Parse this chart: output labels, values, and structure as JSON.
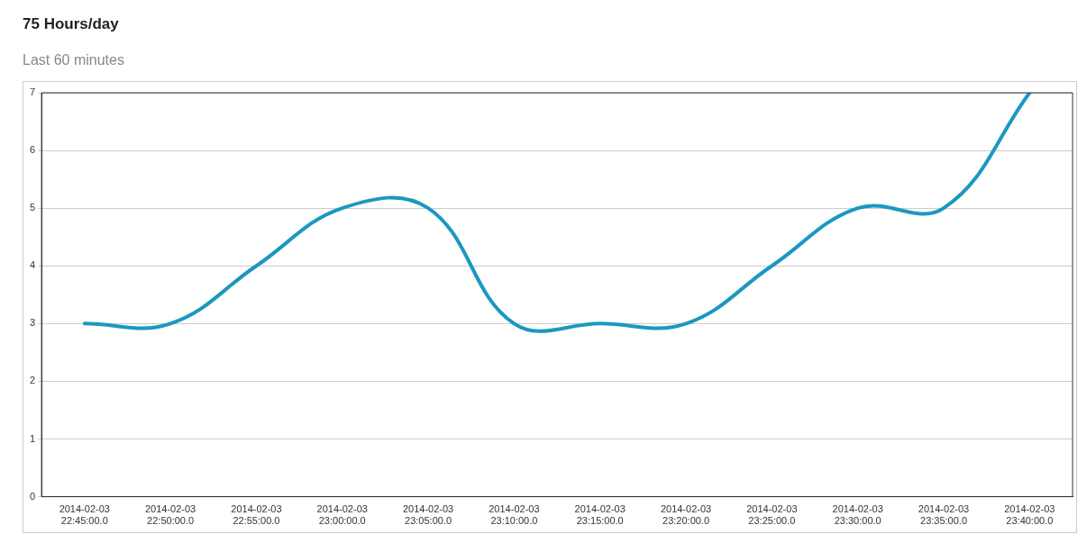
{
  "chart_data": {
    "type": "line",
    "title": "75 Hours/day",
    "subtitle": "Last 60 minutes",
    "categories": [
      "2014-02-03\n22:45:00.0",
      "2014-02-03\n22:50:00.0",
      "2014-02-03\n22:55:00.0",
      "2014-02-03\n23:00:00.0",
      "2014-02-03\n23:05:00.0",
      "2014-02-03\n23:10:00.0",
      "2014-02-03\n23:15:00.0",
      "2014-02-03\n23:20:00.0",
      "2014-02-03\n23:25:00.0",
      "2014-02-03\n23:30:00.0",
      "2014-02-03\n23:35:00.0",
      "2014-02-03\n23:40:00.0"
    ],
    "series": [
      {
        "color": "#1b98c0",
        "values": [
          3,
          3,
          4,
          5,
          5,
          3,
          3,
          3,
          4,
          5,
          5,
          7
        ]
      }
    ],
    "ylim": [
      0,
      7
    ],
    "yticks": [
      0,
      1,
      2,
      3,
      4,
      5,
      6,
      7
    ],
    "grid": "y",
    "legend": false,
    "marker": "none",
    "line_style": "solid"
  }
}
